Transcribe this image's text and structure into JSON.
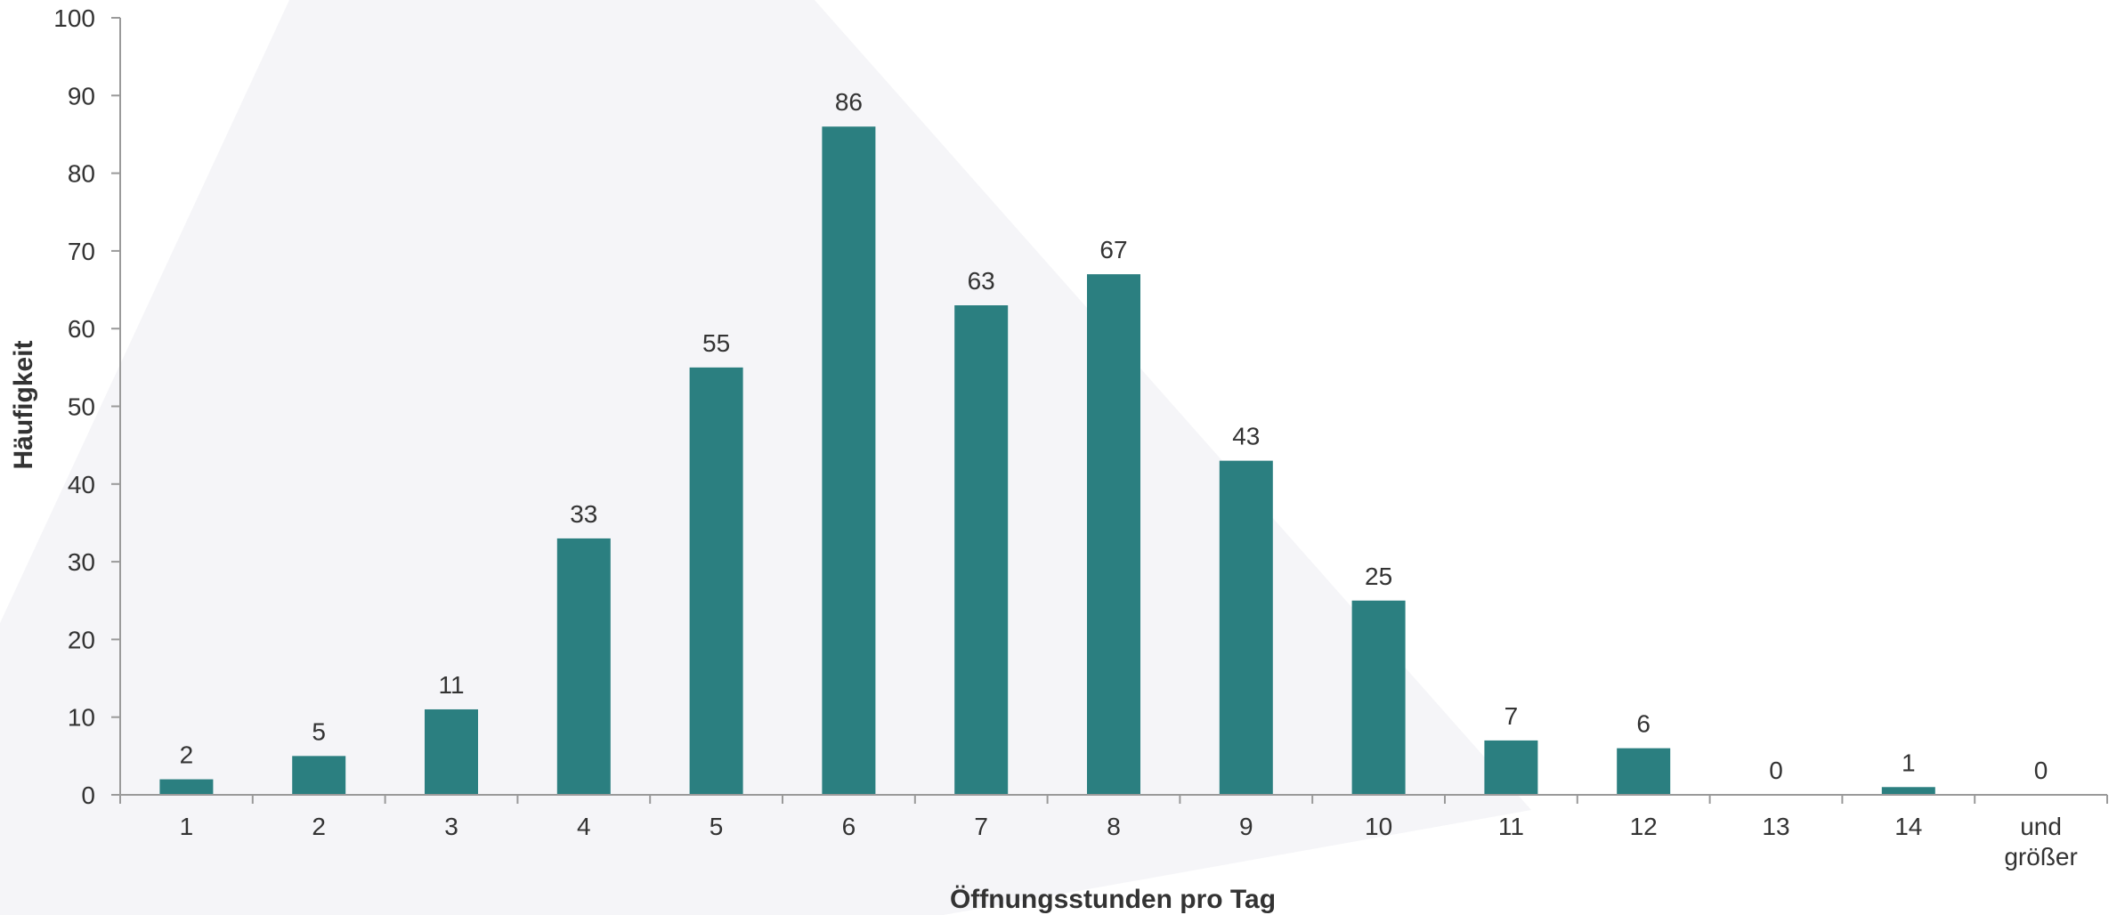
{
  "chart_data": {
    "type": "bar",
    "categories": [
      "1",
      "2",
      "3",
      "4",
      "5",
      "6",
      "7",
      "8",
      "9",
      "10",
      "11",
      "12",
      "13",
      "14",
      "und größer"
    ],
    "values": [
      2,
      5,
      11,
      33,
      55,
      86,
      63,
      67,
      43,
      25,
      7,
      6,
      0,
      1,
      0
    ],
    "xlabel": "Öffnungsstunden pro Tag",
    "ylabel": "Häufigkeit",
    "ylim": [
      0,
      100
    ],
    "yticks": [
      0,
      10,
      20,
      30,
      40,
      50,
      60,
      70,
      80,
      90,
      100
    ],
    "grid": false,
    "data_labels": true,
    "colors": {
      "bar": "#2b7f80",
      "background_shape": "#f5f5f8"
    }
  }
}
